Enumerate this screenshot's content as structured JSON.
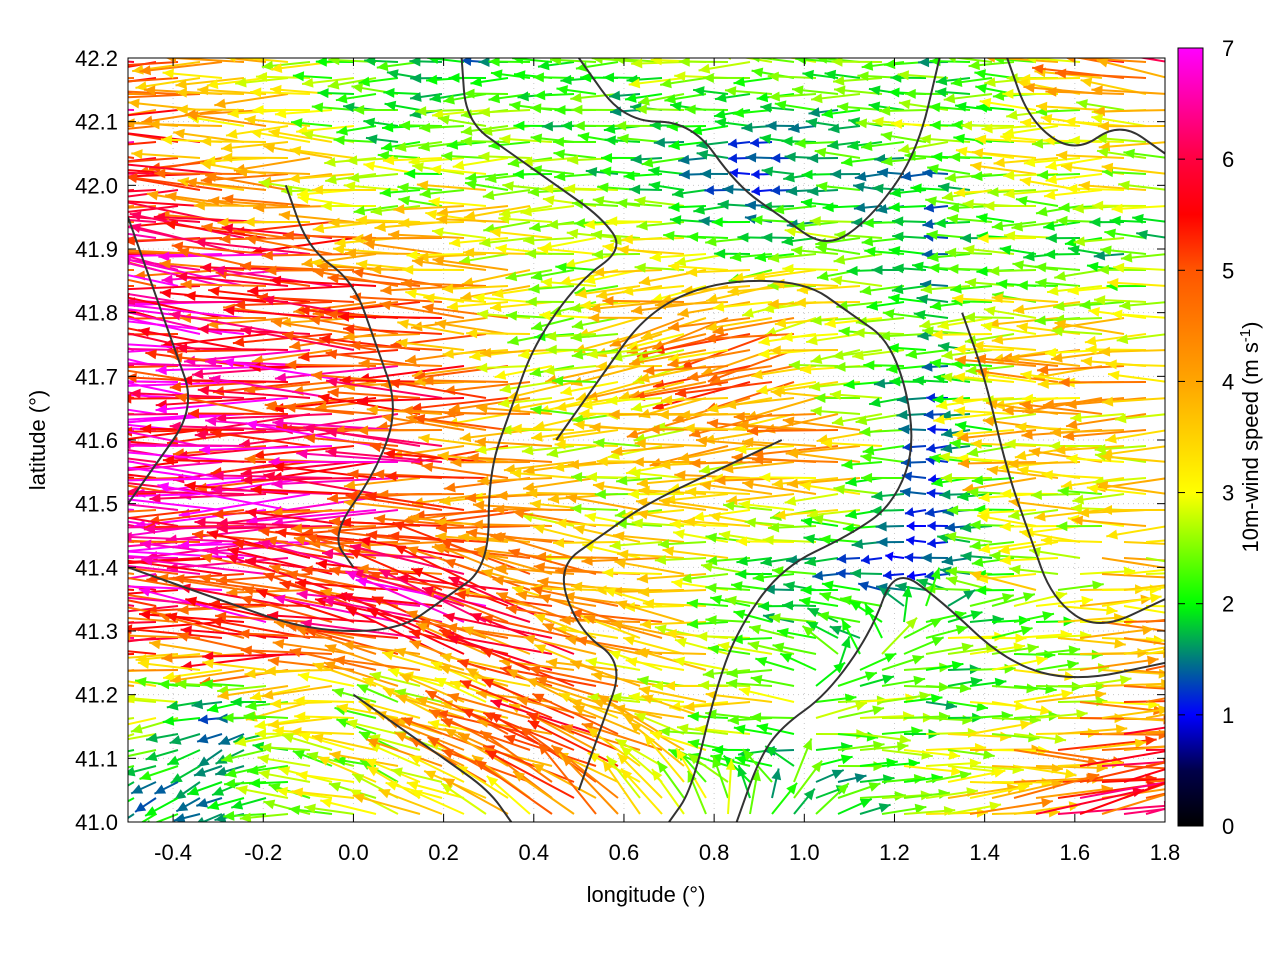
{
  "chart_data": {
    "type": "vector-field",
    "title": "",
    "xlabel": "longitude (°)",
    "ylabel": "latitude (°)",
    "xlim": [
      -0.5,
      1.8
    ],
    "ylim": [
      41.0,
      42.2
    ],
    "xticks": [
      "-0.4",
      "-0.2",
      "0.0",
      "0.2",
      "0.4",
      "0.6",
      "0.8",
      "1.0",
      "1.2",
      "1.4",
      "1.6",
      "1.8"
    ],
    "xtick_values": [
      -0.4,
      -0.2,
      0.0,
      0.2,
      0.4,
      0.6,
      0.8,
      1.0,
      1.2,
      1.4,
      1.6,
      1.8
    ],
    "yticks": [
      "41.0",
      "41.1",
      "41.2",
      "41.3",
      "41.4",
      "41.5",
      "41.6",
      "41.7",
      "41.8",
      "41.9",
      "42.0",
      "42.1",
      "42.2"
    ],
    "ytick_values": [
      41.0,
      41.1,
      41.2,
      41.3,
      41.4,
      41.5,
      41.6,
      41.7,
      41.8,
      41.9,
      42.0,
      42.1,
      42.2
    ],
    "grid": true,
    "colorbar": {
      "label": "10m-wind speed (m s",
      "label_sup": "-1",
      "label_end": ")",
      "range": [
        0,
        7
      ],
      "ticks": [
        "0",
        "1",
        "2",
        "3",
        "4",
        "5",
        "6",
        "7"
      ],
      "tick_values": [
        0,
        1,
        2,
        3,
        4,
        5,
        6,
        7
      ],
      "stops": [
        [
          0,
          "#000000"
        ],
        [
          0.5,
          "#00004a"
        ],
        [
          1,
          "#0000ff"
        ],
        [
          1.5,
          "#007a80"
        ],
        [
          2,
          "#00ff00"
        ],
        [
          3,
          "#ffff00"
        ],
        [
          4,
          "#ffa500"
        ],
        [
          5,
          "#ff5500"
        ],
        [
          5.5,
          "#ff0000"
        ],
        [
          6,
          "#ff0040"
        ],
        [
          7,
          "#ff00ff"
        ]
      ]
    },
    "grid_lons": [
      -0.5,
      -0.3,
      -0.1,
      0.1,
      0.3,
      0.5,
      0.7,
      0.9,
      1.1,
      1.3,
      1.5,
      1.7
    ],
    "grid_lats": [
      42.2,
      42.1,
      42.0,
      41.9,
      41.8,
      41.7,
      41.6,
      41.5,
      41.4,
      41.3,
      41.2,
      41.1,
      41.0
    ],
    "speed_ms": [
      [
        5.5,
        4,
        3,
        2,
        1.5,
        2,
        2.5,
        3,
        2.5,
        2,
        2.5,
        5
      ],
      [
        6,
        4,
        3,
        2,
        2.5,
        2,
        2,
        1.5,
        2,
        2.5,
        2.5,
        3
      ],
      [
        5.5,
        5,
        3.5,
        2.5,
        3,
        2.5,
        2,
        1,
        2,
        1.5,
        3,
        3
      ],
      [
        6,
        6,
        5.5,
        4,
        3.5,
        2.5,
        3,
        2,
        2.5,
        1.5,
        2.5,
        2
      ],
      [
        6.5,
        6,
        5,
        5,
        4,
        2.5,
        3.5,
        4,
        3,
        2,
        3,
        3
      ],
      [
        6,
        6.5,
        6,
        5.5,
        4.5,
        3,
        3.5,
        5,
        3,
        1.5,
        3.5,
        4
      ],
      [
        6,
        6.5,
        6,
        5.5,
        4.5,
        3,
        3,
        4,
        4,
        1,
        3.5,
        3.5
      ],
      [
        6,
        6.5,
        6,
        5.5,
        4.5,
        3.5,
        3,
        3,
        3,
        1,
        3,
        3
      ],
      [
        5.5,
        6,
        5.5,
        5,
        5.5,
        4,
        3.5,
        2.5,
        1.5,
        1,
        3,
        3.5
      ],
      [
        5.5,
        5.5,
        6,
        5.5,
        6,
        4.5,
        4,
        2,
        2,
        2.5,
        2.5,
        4
      ],
      [
        3.5,
        1.5,
        3,
        3,
        3.5,
        5,
        3,
        3,
        2.5,
        2,
        3,
        4
      ],
      [
        2,
        1.5,
        2.5,
        3,
        4,
        5,
        3.5,
        2,
        2,
        3,
        4,
        5.5
      ],
      [
        1.5,
        2,
        2.5,
        3,
        3.5,
        4,
        3,
        2,
        2,
        3,
        5,
        5.5
      ]
    ],
    "direction_toward_deg": [
      [
        180,
        180,
        180,
        180,
        180,
        180,
        185,
        180,
        180,
        180,
        175,
        170
      ],
      [
        180,
        180,
        180,
        180,
        180,
        180,
        180,
        180,
        180,
        180,
        180,
        180
      ],
      [
        180,
        180,
        180,
        180,
        180,
        180,
        180,
        180,
        180,
        180,
        180,
        180
      ],
      [
        175,
        175,
        178,
        180,
        180,
        185,
        180,
        180,
        180,
        180,
        180,
        180
      ],
      [
        172,
        175,
        178,
        180,
        180,
        185,
        190,
        195,
        185,
        180,
        180,
        180
      ],
      [
        175,
        178,
        178,
        180,
        180,
        185,
        190,
        195,
        185,
        180,
        180,
        180
      ],
      [
        178,
        178,
        180,
        180,
        180,
        180,
        185,
        185,
        180,
        180,
        180,
        180
      ],
      [
        178,
        178,
        180,
        180,
        180,
        180,
        180,
        180,
        180,
        180,
        180,
        180
      ],
      [
        180,
        178,
        175,
        170,
        165,
        170,
        175,
        180,
        180,
        180,
        180,
        0
      ],
      [
        178,
        175,
        170,
        165,
        160,
        165,
        170,
        175,
        160,
        10,
        5,
        0
      ],
      [
        180,
        180,
        190,
        165,
        160,
        165,
        170,
        180,
        5,
        0,
        0,
        5
      ],
      [
        200,
        210,
        170,
        160,
        160,
        160,
        150,
        180,
        0,
        0,
        0,
        5
      ],
      [
        210,
        200,
        170,
        160,
        150,
        140,
        120,
        60,
        20,
        10,
        10,
        15
      ]
    ],
    "contours": [
      [
        [
          0.24,
          42.2
        ],
        [
          0.25,
          42.1
        ],
        [
          0.35,
          42.05
        ],
        [
          0.45,
          42.0
        ],
        [
          0.55,
          41.95
        ],
        [
          0.6,
          41.9
        ],
        [
          0.5,
          41.85
        ],
        [
          0.4,
          41.75
        ],
        [
          0.35,
          41.65
        ],
        [
          0.3,
          41.55
        ],
        [
          0.3,
          41.4
        ],
        [
          0.2,
          41.35
        ],
        [
          0.1,
          41.3
        ],
        [
          -0.1,
          41.3
        ],
        [
          -0.3,
          41.35
        ],
        [
          -0.5,
          41.4
        ]
      ],
      [
        [
          0.5,
          42.2
        ],
        [
          0.6,
          42.1
        ],
        [
          0.75,
          42.1
        ],
        [
          0.85,
          42.0
        ],
        [
          0.95,
          41.95
        ],
        [
          1.05,
          41.9
        ],
        [
          1.15,
          41.95
        ],
        [
          1.25,
          42.05
        ],
        [
          1.3,
          42.2
        ]
      ],
      [
        [
          0.45,
          41.6
        ],
        [
          0.55,
          41.7
        ],
        [
          0.65,
          41.8
        ],
        [
          0.8,
          41.85
        ],
        [
          1.0,
          41.85
        ],
        [
          1.1,
          41.8
        ],
        [
          1.2,
          41.75
        ],
        [
          1.25,
          41.6
        ],
        [
          1.2,
          41.5
        ],
        [
          1.1,
          41.45
        ],
        [
          0.95,
          41.4
        ],
        [
          0.85,
          41.3
        ],
        [
          0.8,
          41.2
        ],
        [
          0.75,
          41.05
        ],
        [
          0.7,
          41.0
        ]
      ],
      [
        [
          1.35,
          41.8
        ],
        [
          1.4,
          41.7
        ],
        [
          1.45,
          41.55
        ],
        [
          1.5,
          41.45
        ],
        [
          1.55,
          41.35
        ],
        [
          1.65,
          41.3
        ],
        [
          1.8,
          41.35
        ]
      ],
      [
        [
          -0.5,
          41.95
        ],
        [
          -0.45,
          41.85
        ],
        [
          -0.4,
          41.75
        ],
        [
          -0.35,
          41.65
        ],
        [
          -0.45,
          41.55
        ],
        [
          -0.5,
          41.5
        ]
      ],
      [
        [
          -0.15,
          42.0
        ],
        [
          -0.1,
          41.9
        ],
        [
          0.0,
          41.85
        ],
        [
          0.05,
          41.75
        ],
        [
          0.1,
          41.65
        ],
        [
          0.05,
          41.55
        ],
        [
          -0.05,
          41.45
        ],
        [
          0.0,
          41.4
        ]
      ],
      [
        [
          0.0,
          41.2
        ],
        [
          0.1,
          41.15
        ],
        [
          0.2,
          41.1
        ],
        [
          0.3,
          41.05
        ],
        [
          0.35,
          41.0
        ]
      ],
      [
        [
          0.85,
          41.0
        ],
        [
          0.9,
          41.1
        ],
        [
          0.95,
          41.15
        ],
        [
          1.05,
          41.2
        ],
        [
          1.15,
          41.3
        ],
        [
          1.2,
          41.4
        ],
        [
          1.3,
          41.35
        ],
        [
          1.45,
          41.25
        ],
        [
          1.6,
          41.22
        ],
        [
          1.8,
          41.25
        ]
      ],
      [
        [
          0.5,
          41.05
        ],
        [
          0.55,
          41.15
        ],
        [
          0.6,
          41.25
        ],
        [
          0.5,
          41.3
        ],
        [
          0.45,
          41.4
        ],
        [
          0.55,
          41.45
        ],
        [
          0.65,
          41.5
        ],
        [
          0.8,
          41.55
        ],
        [
          0.95,
          41.6
        ]
      ],
      [
        [
          1.45,
          42.2
        ],
        [
          1.5,
          42.1
        ],
        [
          1.6,
          42.05
        ],
        [
          1.7,
          42.1
        ],
        [
          1.8,
          42.05
        ]
      ]
    ]
  }
}
